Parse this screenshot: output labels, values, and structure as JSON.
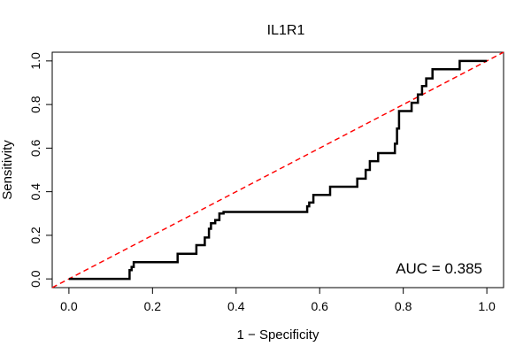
{
  "chart_data": {
    "type": "line",
    "title": "IL1R1",
    "xlabel": "1 − Specificity",
    "ylabel": "Sensitivity",
    "xlim": [
      -0.04,
      1.04
    ],
    "ylim": [
      -0.04,
      1.04
    ],
    "xticks": [
      0.0,
      0.2,
      0.4,
      0.6,
      0.8,
      1.0
    ],
    "yticks": [
      0.0,
      0.2,
      0.4,
      0.6,
      0.8,
      1.0
    ],
    "tick_labels": {
      "x": [
        "0.0",
        "0.2",
        "0.4",
        "0.6",
        "0.8",
        "1.0"
      ],
      "y": [
        "0.0",
        "0.2",
        "0.4",
        "0.6",
        "0.8",
        "1.0"
      ]
    },
    "series": [
      {
        "name": "ROC curve",
        "color": "#000000",
        "x": [
          0.0,
          0.145,
          0.145,
          0.15,
          0.15,
          0.155,
          0.155,
          0.21,
          0.21,
          0.26,
          0.26,
          0.305,
          0.305,
          0.325,
          0.325,
          0.335,
          0.335,
          0.34,
          0.34,
          0.35,
          0.35,
          0.36,
          0.36,
          0.37,
          0.37,
          0.42,
          0.42,
          0.57,
          0.57,
          0.575,
          0.575,
          0.585,
          0.585,
          0.625,
          0.625,
          0.69,
          0.69,
          0.71,
          0.71,
          0.72,
          0.72,
          0.74,
          0.74,
          0.78,
          0.78,
          0.785,
          0.785,
          0.79,
          0.79,
          0.82,
          0.82,
          0.835,
          0.835,
          0.845,
          0.845,
          0.855,
          0.855,
          0.87,
          0.87,
          0.935,
          0.935,
          1.0
        ],
        "y": [
          0.0,
          0.0,
          0.04,
          0.04,
          0.055,
          0.055,
          0.077,
          0.077,
          0.077,
          0.077,
          0.115,
          0.115,
          0.155,
          0.155,
          0.19,
          0.19,
          0.23,
          0.23,
          0.255,
          0.255,
          0.27,
          0.27,
          0.3,
          0.3,
          0.307,
          0.307,
          0.307,
          0.307,
          0.333,
          0.333,
          0.35,
          0.35,
          0.385,
          0.385,
          0.423,
          0.423,
          0.46,
          0.46,
          0.5,
          0.5,
          0.54,
          0.54,
          0.577,
          0.577,
          0.62,
          0.62,
          0.69,
          0.69,
          0.77,
          0.77,
          0.808,
          0.808,
          0.846,
          0.846,
          0.885,
          0.885,
          0.92,
          0.92,
          0.962,
          0.962,
          1.0,
          1.0
        ]
      },
      {
        "name": "Reference diagonal",
        "color": "#ff0000",
        "style": "dashed",
        "x": [
          -0.04,
          1.04
        ],
        "y": [
          -0.04,
          1.04
        ]
      }
    ],
    "annotations": [
      {
        "text": "AUC = 0.385",
        "position": "bottom-right"
      }
    ],
    "grid": false,
    "legend": "none"
  }
}
